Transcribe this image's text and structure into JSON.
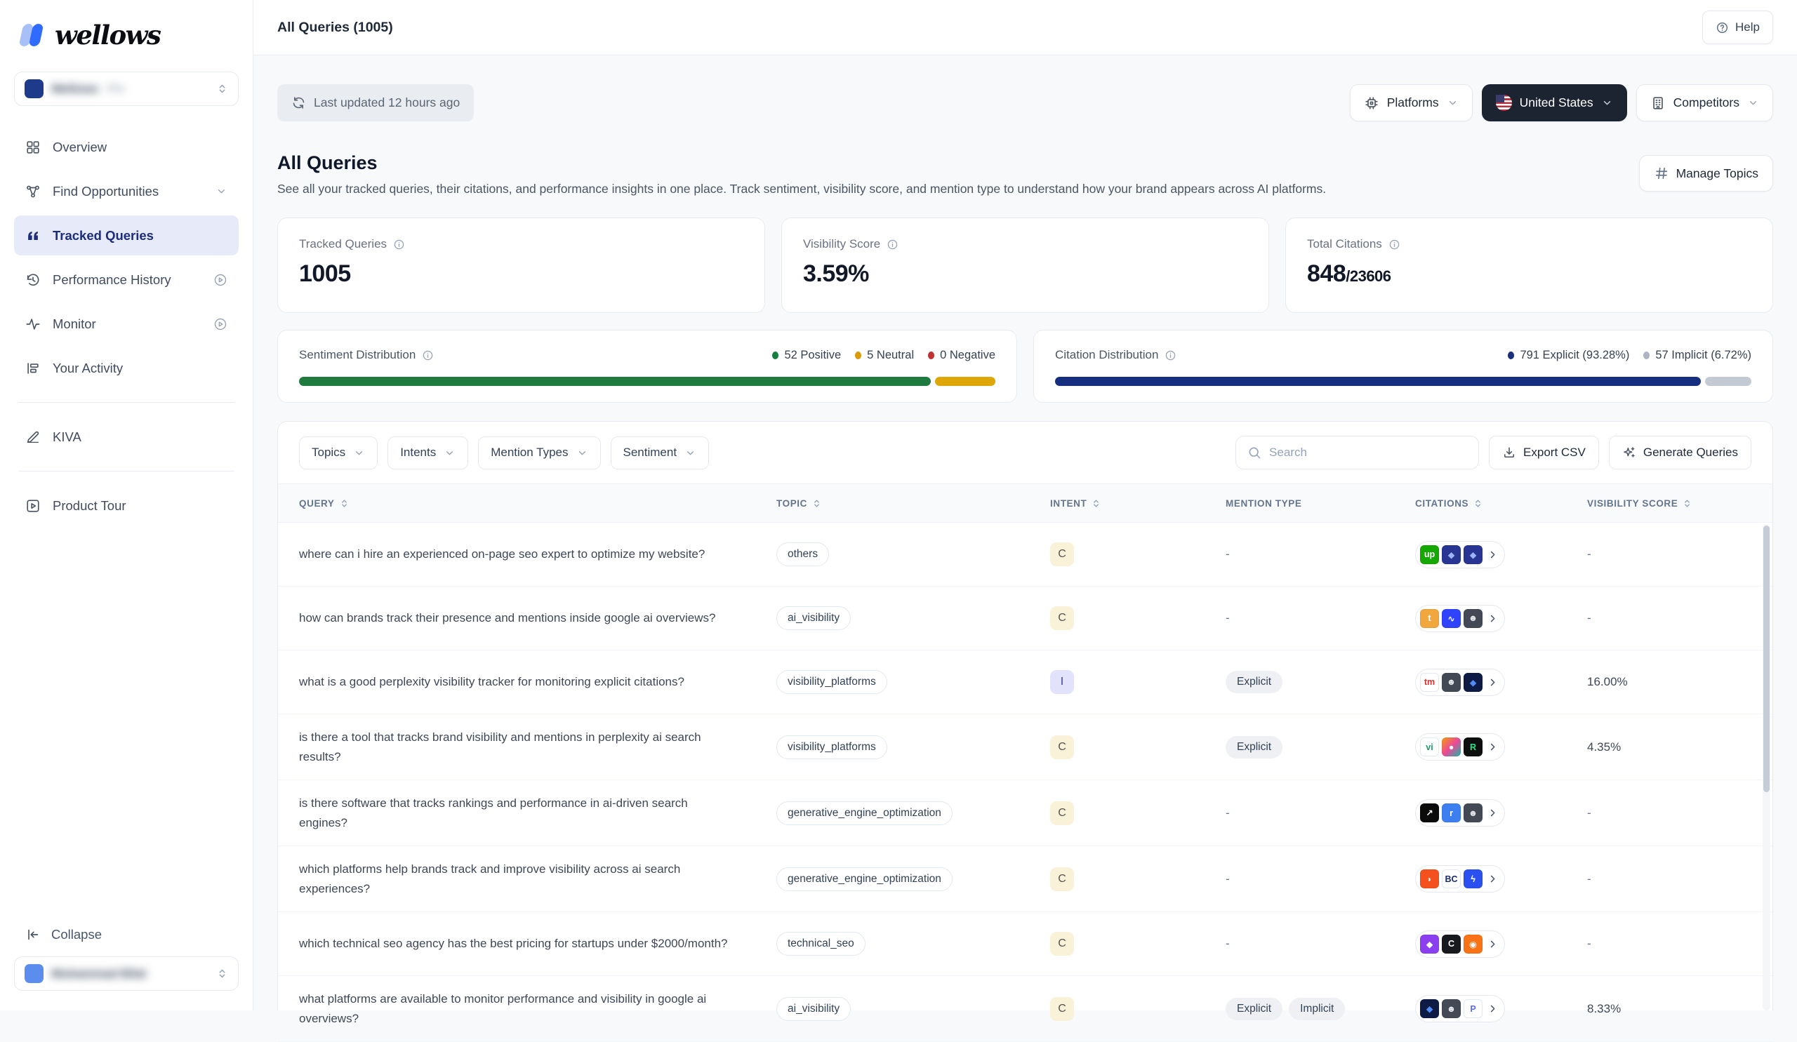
{
  "brand": {
    "logo_text": "wellows"
  },
  "sidebar": {
    "workspace": {
      "name": "Wellows",
      "badge": "Pro"
    },
    "nav": [
      {
        "label": "Overview",
        "icon": "grid-icon"
      },
      {
        "label": "Find Opportunities",
        "icon": "network-icon",
        "trailing": "chevron-down-icon"
      },
      {
        "label": "Tracked Queries",
        "icon": "quotes-icon",
        "active": true
      },
      {
        "label": "Performance History",
        "icon": "history-icon",
        "trailing": "play-circle-icon"
      },
      {
        "label": "Monitor",
        "icon": "pulse-icon",
        "trailing": "play-circle-icon"
      },
      {
        "label": "Your Activity",
        "icon": "activity-log-icon"
      }
    ],
    "secondary": [
      {
        "label": "KIVA",
        "icon": "pen-icon"
      }
    ],
    "tertiary": [
      {
        "label": "Product Tour",
        "icon": "play-square-icon"
      }
    ],
    "collapse_label": "Collapse",
    "user": {
      "name": "Muhammad Bilal"
    }
  },
  "header": {
    "title": "All Queries (1005)",
    "help_label": "Help"
  },
  "toolbar": {
    "last_updated": "Last updated 12 hours ago",
    "filters": [
      {
        "label": "Platforms",
        "icon": "cpu-icon",
        "dark": false
      },
      {
        "label": "United States",
        "icon": "us-flag-icon",
        "dark": true
      },
      {
        "label": "Competitors",
        "icon": "building-icon",
        "dark": false
      }
    ]
  },
  "page": {
    "title": "All Queries",
    "description": "See all your tracked queries, their citations, and performance insights in one place. Track sentiment, visibility score, and mention type to understand how your brand appears across AI platforms.",
    "manage_topics_label": "Manage Topics"
  },
  "stats": [
    {
      "label": "Tracked Queries",
      "value": "1005",
      "suffix": ""
    },
    {
      "label": "Visibility Score",
      "value": "3.59%",
      "suffix": ""
    },
    {
      "label": "Total Citations",
      "value": "848",
      "suffix": "/23606"
    }
  ],
  "sentiment": {
    "title": "Sentiment Distribution",
    "legend": [
      {
        "label": "52 Positive",
        "color": "#15803d"
      },
      {
        "label": "5 Neutral",
        "color": "#d79c08"
      },
      {
        "label": "0 Negative",
        "color": "#c03232"
      }
    ],
    "segments": [
      {
        "value": 52,
        "color": "#1e7b3d"
      },
      {
        "value": 5,
        "color": "#dfa607"
      }
    ]
  },
  "citation": {
    "title": "Citation Distribution",
    "legend": [
      {
        "label": "791 Explicit (93.28%)",
        "color": "#1b2f7e"
      },
      {
        "label": "57 Implicit (6.72%)",
        "color": "#adb5c2"
      }
    ],
    "segments": [
      {
        "value": 93.28,
        "color": "#162e80"
      },
      {
        "value": 6.72,
        "color": "#c4cad4"
      }
    ]
  },
  "table_toolbar": {
    "filters": [
      "Topics",
      "Intents",
      "Mention Types",
      "Sentiment"
    ],
    "search_placeholder": "Search",
    "export_label": "Export CSV",
    "generate_label": "Generate Queries"
  },
  "table": {
    "columns": [
      {
        "label": "Query",
        "sortable": true
      },
      {
        "label": "Topic",
        "sortable": true
      },
      {
        "label": "Intent",
        "sortable": true
      },
      {
        "label": "Mention Type",
        "sortable": false
      },
      {
        "label": "Citations",
        "sortable": true
      },
      {
        "label": "Visibility Score",
        "sortable": true
      }
    ],
    "rows": [
      {
        "query": "where can i hire an experienced on-page seo expert to optimize my website?",
        "topic": "others",
        "intent": "C",
        "mentions": [],
        "score": "-",
        "favicons": [
          {
            "bg": "#14a800",
            "fg": "#ffffff",
            "glyph": "up"
          },
          {
            "bg": "#283593",
            "fg": "#9fb4ff",
            "glyph": "◆"
          },
          {
            "bg": "#283593",
            "fg": "#9fb4ff",
            "glyph": "◆"
          }
        ]
      },
      {
        "query": "how can brands track their presence and mentions inside google ai overviews?",
        "topic": "ai_visibility",
        "intent": "C",
        "mentions": [],
        "score": "-",
        "favicons": [
          {
            "bg": "#f0a73e",
            "fg": "#ffffff",
            "glyph": "t"
          },
          {
            "bg": "#2f43ff",
            "fg": "#ffffff",
            "glyph": "∿"
          },
          {
            "bg": "#434a56",
            "fg": "#e5e7eb",
            "glyph": "☻"
          }
        ]
      },
      {
        "query": "what is a good perplexity visibility tracker for monitoring explicit citations?",
        "topic": "visibility_platforms",
        "intent": "I",
        "mentions": [
          "Explicit"
        ],
        "score": "16.00%",
        "favicons": [
          {
            "bg": "#ffffff",
            "fg": "#d03333",
            "glyph": "tm"
          },
          {
            "bg": "#434a56",
            "fg": "#e5e7eb",
            "glyph": "☻"
          },
          {
            "bg": "#0d1b45",
            "fg": "#4f8df7",
            "glyph": "◆"
          }
        ]
      },
      {
        "query": "is there a tool that tracks brand visibility and mentions in perplexity ai search results?",
        "topic": "visibility_platforms",
        "intent": "C",
        "mentions": [
          "Explicit"
        ],
        "score": "4.35%",
        "favicons": [
          {
            "bg": "#ffffff",
            "fg": "#1a9c6b",
            "glyph": "vi"
          },
          {
            "bg": "linear-gradient(135deg,#f59e0b,#ec4899,#14b8a6)",
            "fg": "#ffffff",
            "glyph": "●"
          },
          {
            "bg": "#0c0f0d",
            "fg": "#22e584",
            "glyph": "R"
          }
        ]
      },
      {
        "query": "is there software that tracks rankings and performance in ai-driven search engines?",
        "topic": "generative_engine_optimization",
        "intent": "C",
        "mentions": [],
        "score": "-",
        "favicons": [
          {
            "bg": "#0b0b0c",
            "fg": "#ffffff",
            "glyph": "↗"
          },
          {
            "bg": "#3d7ff0",
            "fg": "#ffffff",
            "glyph": "r"
          },
          {
            "bg": "#434a56",
            "fg": "#e5e7eb",
            "glyph": "☻"
          }
        ]
      },
      {
        "query": "which platforms help brands track and improve visibility across ai search experiences?",
        "topic": "generative_engine_optimization",
        "intent": "C",
        "mentions": [],
        "score": "-",
        "favicons": [
          {
            "bg": "#f4511e",
            "fg": "#ffffff",
            "glyph": "◗"
          },
          {
            "bg": "#ffffff",
            "fg": "#1b2a6b",
            "glyph": "BC"
          },
          {
            "bg": "#2b50f0",
            "fg": "#ffffff",
            "glyph": "ϟ"
          }
        ]
      },
      {
        "query": "which technical seo agency has the best pricing for startups under $2000/month?",
        "topic": "technical_seo",
        "intent": "C",
        "mentions": [],
        "score": "-",
        "favicons": [
          {
            "bg": "#8b3ff0",
            "fg": "#ffffff",
            "glyph": "◆"
          },
          {
            "bg": "#17191e",
            "fg": "#ffffff",
            "glyph": "C"
          },
          {
            "bg": "#f97316",
            "fg": "#ffffff",
            "glyph": "◉"
          }
        ]
      },
      {
        "query": "what platforms are available to monitor performance and visibility in google ai overviews?",
        "topic": "ai_visibility",
        "intent": "C",
        "mentions": [
          "Explicit",
          "Implicit"
        ],
        "score": "8.33%",
        "favicons": [
          {
            "bg": "#0d1b45",
            "fg": "#4f8df7",
            "glyph": "◆"
          },
          {
            "bg": "#434a56",
            "fg": "#e5e7eb",
            "glyph": "☻"
          },
          {
            "bg": "#ffffff",
            "fg": "#5b6cf0",
            "glyph": "P"
          }
        ]
      }
    ]
  }
}
